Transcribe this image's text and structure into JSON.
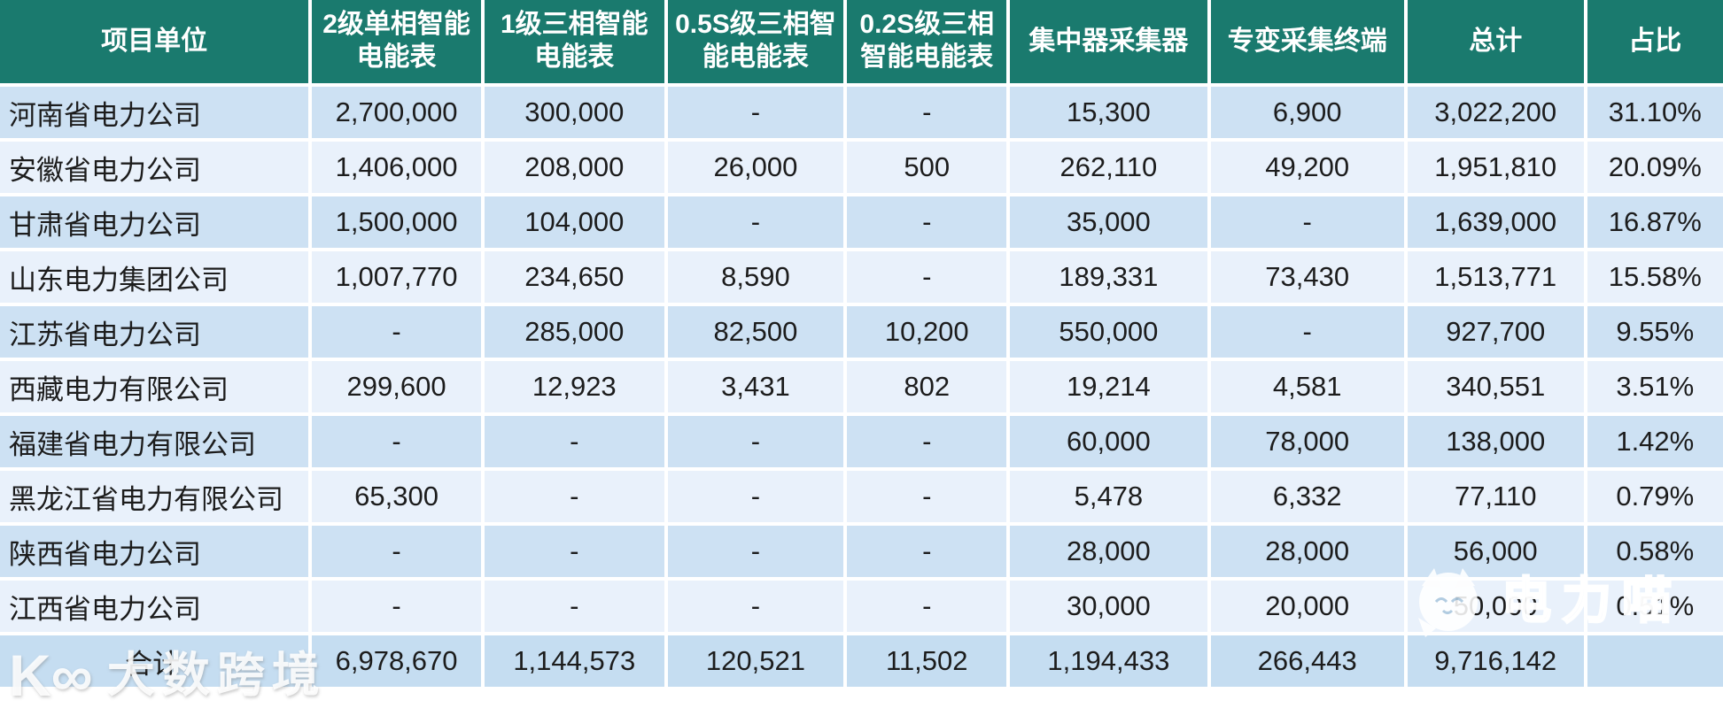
{
  "chart_data": {
    "type": "table",
    "title": "",
    "columns": [
      "项目单位",
      "2级单相智能电能表",
      "1级三相智能电能表",
      "0.5S级三相智能电能表",
      "0.2S级三相智能电能表",
      "集中器采集器",
      "专变采集终端",
      "总计",
      "占比"
    ],
    "rows": [
      [
        "河南省电力公司",
        "2,700,000",
        "300,000",
        "-",
        "-",
        "15,300",
        "6,900",
        "3,022,200",
        "31.10%"
      ],
      [
        "安徽省电力公司",
        "1,406,000",
        "208,000",
        "26,000",
        "500",
        "262,110",
        "49,200",
        "1,951,810",
        "20.09%"
      ],
      [
        "甘肃省电力公司",
        "1,500,000",
        "104,000",
        "-",
        "-",
        "35,000",
        "-",
        "1,639,000",
        "16.87%"
      ],
      [
        "山东电力集团公司",
        "1,007,770",
        "234,650",
        "8,590",
        "-",
        "189,331",
        "73,430",
        "1,513,771",
        "15.58%"
      ],
      [
        "江苏省电力公司",
        "-",
        "285,000",
        "82,500",
        "10,200",
        "550,000",
        "-",
        "927,700",
        "9.55%"
      ],
      [
        "西藏电力有限公司",
        "299,600",
        "12,923",
        "3,431",
        "802",
        "19,214",
        "4,581",
        "340,551",
        "3.51%"
      ],
      [
        "福建省电力有限公司",
        "-",
        "-",
        "-",
        "-",
        "60,000",
        "78,000",
        "138,000",
        "1.42%"
      ],
      [
        "黑龙江省电力有限公司",
        "65,300",
        "-",
        "-",
        "-",
        "5,478",
        "6,332",
        "77,110",
        "0.79%"
      ],
      [
        "陕西省电力公司",
        "-",
        "-",
        "-",
        "-",
        "28,000",
        "28,000",
        "56,000",
        "0.58%"
      ],
      [
        "江西省电力公司",
        "-",
        "-",
        "-",
        "-",
        "30,000",
        "20,000",
        "50,000",
        "0.51%"
      ]
    ],
    "total_row": [
      "合计",
      "6,978,670",
      "1,144,573",
      "120,521",
      "11,502",
      "1,194,433",
      "266,443",
      "9,716,142",
      ""
    ]
  },
  "watermarks": {
    "bottom_left": {
      "logo": "K∞",
      "text": "大数跨境"
    },
    "bottom_right": {
      "icon": "cat-face",
      "text": "电力喵"
    }
  },
  "colors": {
    "header_bg": "#1a7a6e",
    "row_odd_bg": "#cde1f3",
    "row_even_bg": "#e9f1fb",
    "total_row_bg": "#c5ddf1",
    "header_text": "#ffffff",
    "text": "#1c1c1c"
  }
}
